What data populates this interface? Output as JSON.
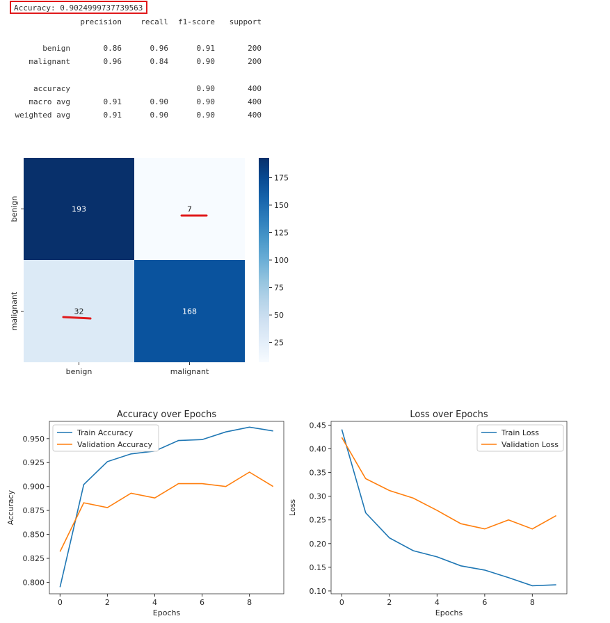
{
  "report": {
    "accuracy_line": "Accuracy: 0.9024999737739563",
    "headers": [
      "precision",
      "recall",
      "f1-score",
      "support"
    ],
    "rows": [
      {
        "label": "benign",
        "values": [
          "0.86",
          "0.96",
          "0.91",
          "200"
        ]
      },
      {
        "label": "malignant",
        "values": [
          "0.96",
          "0.84",
          "0.90",
          "200"
        ]
      },
      {
        "label": "accuracy",
        "values": [
          "",
          "",
          "0.90",
          "400"
        ]
      },
      {
        "label": "macro avg",
        "values": [
          "0.91",
          "0.90",
          "0.90",
          "400"
        ]
      },
      {
        "label": "weighted avg",
        "values": [
          "0.91",
          "0.90",
          "0.90",
          "400"
        ]
      }
    ]
  },
  "chart_data": [
    {
      "type": "heatmap",
      "row_labels": [
        "benign",
        "malignant"
      ],
      "col_labels": [
        "benign",
        "malignant"
      ],
      "values": [
        [
          193,
          7
        ],
        [
          32,
          168
        ]
      ],
      "colormap": "Blues",
      "colorbar_ticks": [
        25,
        50,
        75,
        100,
        125,
        150,
        175
      ],
      "colorbar_range": [
        7,
        193
      ],
      "annotation_marks": "red underline below cells 7 and 32"
    },
    {
      "type": "line",
      "title": "Accuracy over Epochs",
      "xlabel": "Epochs",
      "ylabel": "Accuracy",
      "x": [
        0,
        1,
        2,
        3,
        4,
        5,
        6,
        7,
        8,
        9
      ],
      "xticks": [
        0,
        2,
        4,
        6,
        8
      ],
      "yticks": [
        0.8,
        0.825,
        0.85,
        0.875,
        0.9,
        0.925,
        0.95
      ],
      "ylim": [
        0.788,
        0.968
      ],
      "legend": "top-left",
      "series": [
        {
          "name": "Train Accuracy",
          "color": "#1f77b4",
          "values": [
            0.795,
            0.902,
            0.926,
            0.934,
            0.937,
            0.948,
            0.949,
            0.957,
            0.962,
            0.958
          ]
        },
        {
          "name": "Validation Accuracy",
          "color": "#ff7f0e",
          "values": [
            0.832,
            0.883,
            0.878,
            0.893,
            0.888,
            0.903,
            0.903,
            0.9,
            0.915,
            0.9
          ]
        }
      ]
    },
    {
      "type": "line",
      "title": "Loss over Epochs",
      "xlabel": "Epochs",
      "ylabel": "Loss",
      "x": [
        0,
        1,
        2,
        3,
        4,
        5,
        6,
        7,
        8,
        9
      ],
      "xticks": [
        0,
        2,
        4,
        6,
        8
      ],
      "yticks": [
        0.1,
        0.15,
        0.2,
        0.25,
        0.3,
        0.35,
        0.4,
        0.45
      ],
      "ylim": [
        0.094,
        0.458
      ],
      "legend": "top-right",
      "series": [
        {
          "name": "Train Loss",
          "color": "#1f77b4",
          "values": [
            0.441,
            0.265,
            0.212,
            0.185,
            0.172,
            0.153,
            0.144,
            0.128,
            0.111,
            0.113
          ]
        },
        {
          "name": "Validation Loss",
          "color": "#ff7f0e",
          "values": [
            0.424,
            0.337,
            0.312,
            0.296,
            0.27,
            0.242,
            0.231,
            0.25,
            0.231,
            0.259
          ]
        }
      ]
    }
  ]
}
